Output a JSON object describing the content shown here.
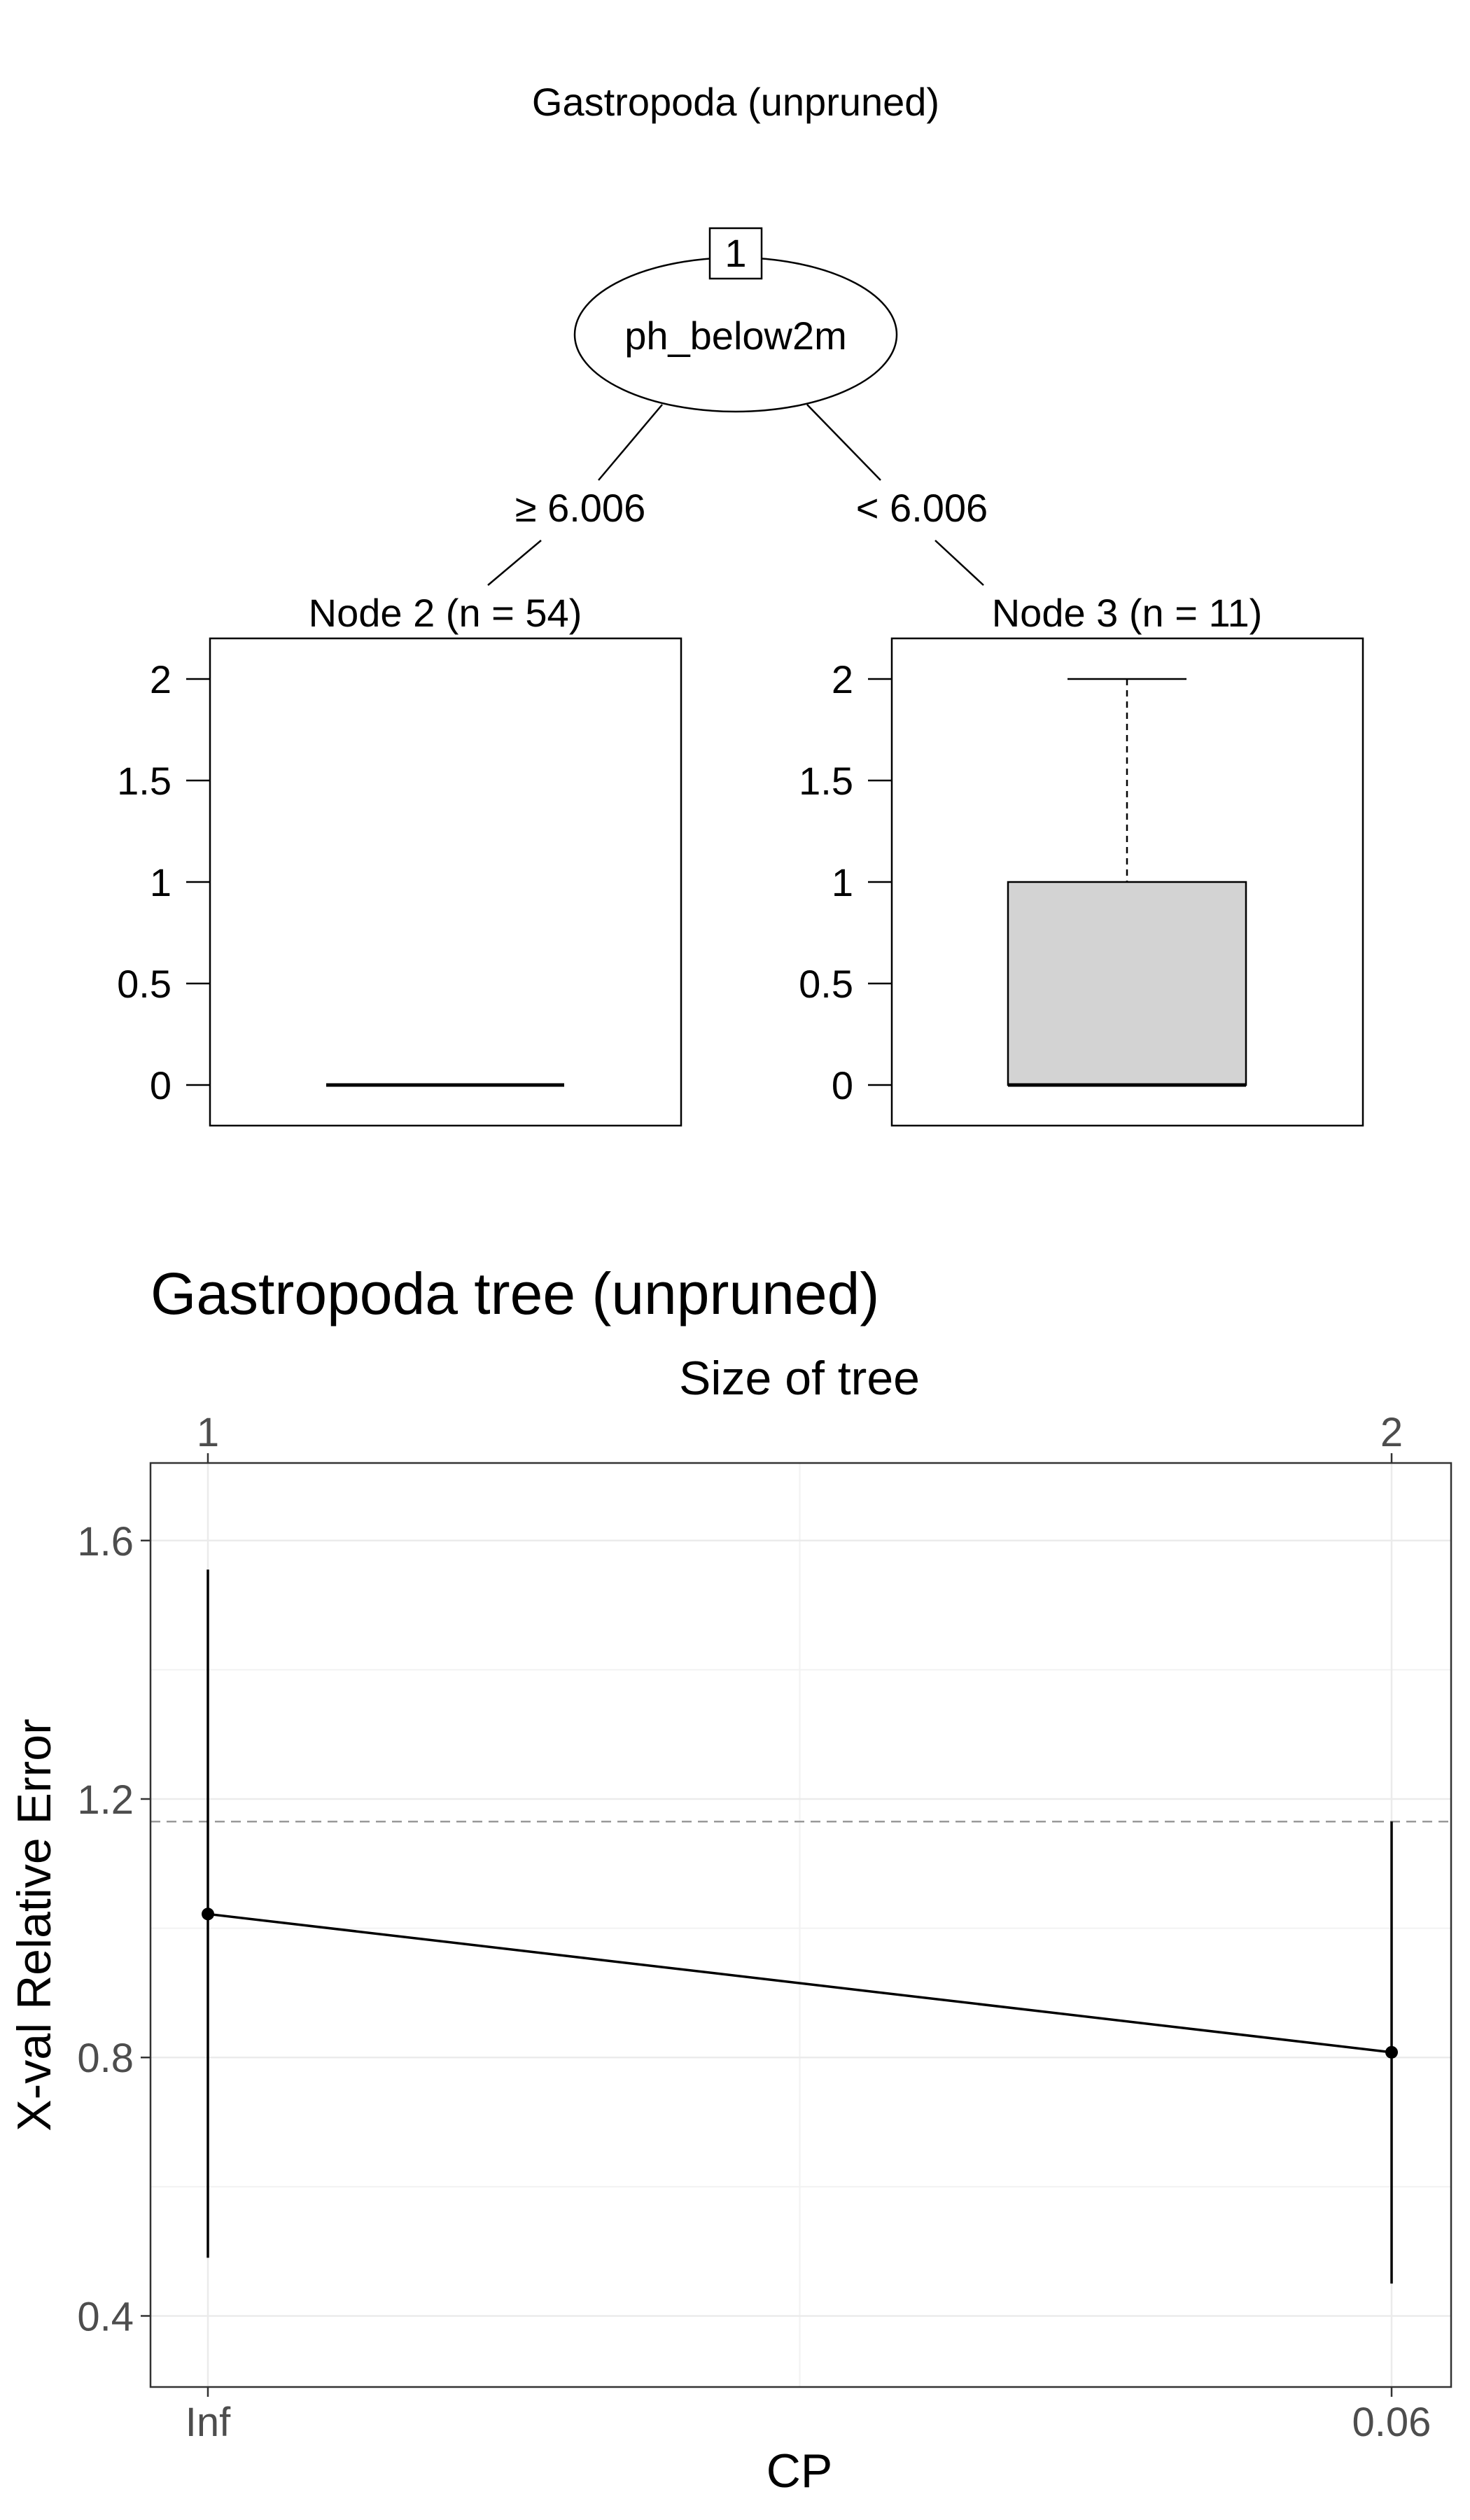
{
  "tree": {
    "title": "Gastropoda (unpruned)",
    "root": {
      "id": "1",
      "split_var": "ph_below2m"
    },
    "left_edge_label": "≥ 6.006",
    "right_edge_label": "< 6.006",
    "tick_labels": [
      "2",
      "1.5",
      "1",
      "0.5",
      "0"
    ],
    "nodes": [
      {
        "label": "Node 2 (n = 54)",
        "box": {
          "min": 0,
          "q1": 0,
          "median": 0,
          "q3": 0,
          "max": 0
        }
      },
      {
        "label": "Node 3 (n = 11)",
        "box": {
          "min": 0,
          "q1": 0,
          "median": 0,
          "q3": 1,
          "max": 2
        }
      }
    ]
  },
  "chart_data": [
    {
      "type": "boxplot",
      "title": "Gastropoda (unpruned)",
      "categories": [
        "Node 2 (n = 54)",
        "Node 3 (n = 11)"
      ],
      "series": [
        {
          "values": [
            {
              "min": 0,
              "q1": 0,
              "median": 0,
              "q3": 0,
              "max": 0
            },
            {
              "min": 0,
              "q1": 0,
              "median": 0,
              "q3": 1,
              "max": 2
            }
          ]
        }
      ],
      "ylim": [
        0,
        2.2
      ],
      "yticks": [
        0,
        0.5,
        1,
        1.5,
        2
      ]
    },
    {
      "type": "line",
      "title": "Gastropoda tree (unpruned)",
      "xlabel": "CP",
      "ylabel": "X-val Relative Error",
      "top_axis_label": "Size of tree",
      "categories": [
        "Inf",
        "0.06"
      ],
      "top_axis_ticks": [
        "1",
        "2"
      ],
      "yticks": [
        "0.4",
        "0.8",
        "1.2",
        "1.6"
      ],
      "ylim": [
        0.29,
        1.72
      ],
      "series": [
        {
          "values": [
            1.022,
            0.808
          ],
          "lower": [
            0.49,
            0.45
          ],
          "upper": [
            1.555,
            1.165
          ]
        }
      ],
      "reference_line": {
        "y": 1.165,
        "style": "dashed"
      },
      "grid": true
    }
  ],
  "colors": {
    "box_fill": "#d3d3d3",
    "line": "#000000",
    "grid": "#ebebeb",
    "reference_line": "#999999",
    "axis_text": "#4d4d4d"
  }
}
